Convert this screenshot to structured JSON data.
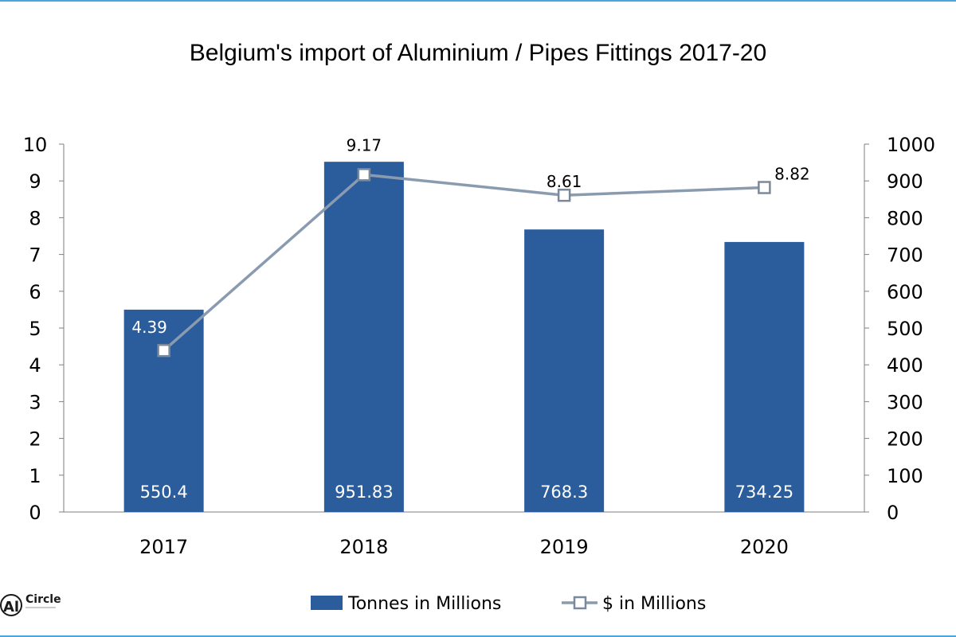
{
  "chart_data": {
    "type": "bar+line",
    "title": "Belgium's import of Aluminium / Pipes Fittings 2017-20",
    "categories": [
      "2017",
      "2018",
      "2019",
      "2020"
    ],
    "bar_series": {
      "name": "Tonnes in Millions",
      "values": [
        5.5,
        9.52,
        7.68,
        7.34
      ],
      "labels": [
        "550.4",
        "951.83",
        "768.3",
        "734.25"
      ],
      "color": "#2b5c9c",
      "axis": "left"
    },
    "line_series": {
      "name": "$ in Millions",
      "values": [
        439,
        917,
        861,
        882
      ],
      "labels": [
        "4.39",
        "9.17",
        "8.61",
        "8.82"
      ],
      "color": "#8a9bb0",
      "axis": "right"
    },
    "left_axis": {
      "min": 0,
      "max": 10,
      "ticks": [
        "0",
        "1",
        "2",
        "3",
        "4",
        "5",
        "6",
        "7",
        "8",
        "9",
        "10"
      ]
    },
    "right_axis": {
      "min": 0,
      "max": 1000,
      "ticks": [
        "0",
        "100",
        "200",
        "300",
        "400",
        "500",
        "600",
        "700",
        "800",
        "900",
        "1000"
      ]
    },
    "legend_position": "bottom",
    "grid": false
  },
  "logo": {
    "text": "Circle",
    "letters": "Al"
  }
}
